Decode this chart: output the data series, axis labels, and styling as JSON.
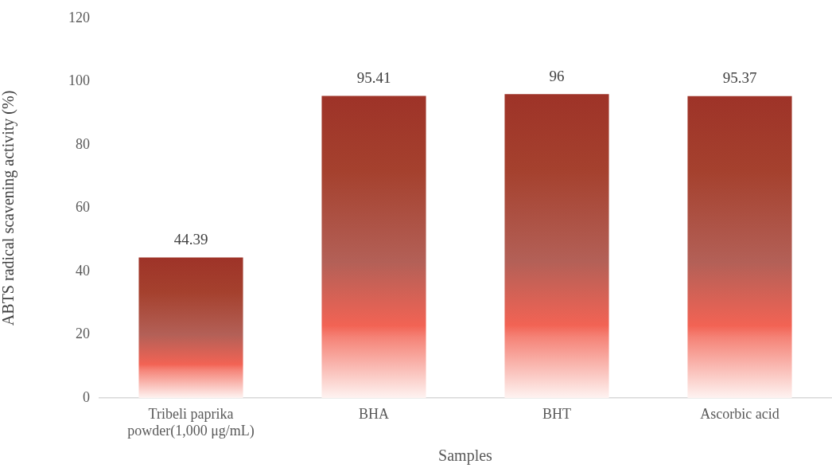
{
  "chart_data": {
    "type": "bar",
    "xlabel": "Samples",
    "ylabel": "ABTS radical scavening activity (%)",
    "categories": [
      "Tribeli paprika powder(1,000 μg/mL)",
      "BHA",
      "BHT",
      "Ascorbic acid"
    ],
    "values": [
      44.39,
      95.41,
      96,
      95.37
    ],
    "color": "#9e3328",
    "ylim": [
      0,
      120
    ],
    "yticks": [
      0,
      20,
      40,
      60,
      80,
      100,
      120
    ],
    "data_labels": true
  }
}
